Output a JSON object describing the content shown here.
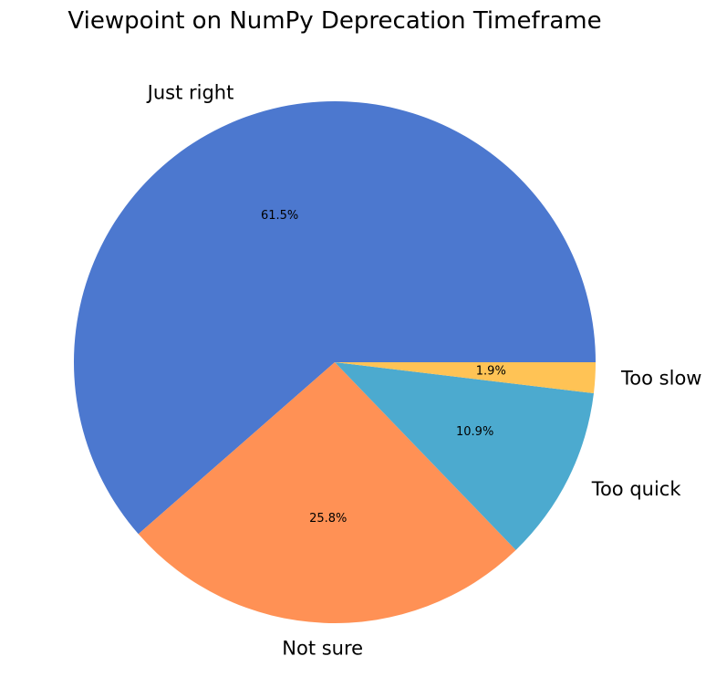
{
  "chart_data": {
    "type": "pie",
    "title": "Viewpoint on NumPy Deprecation Timeframe",
    "start_angle_deg": 0,
    "direction": "counterclockwise",
    "legend": "none",
    "slices": [
      {
        "label": "Just right",
        "value": 61.5,
        "pct_label": "61.5%",
        "color": "#4c78cf"
      },
      {
        "label": "Not sure",
        "value": 25.8,
        "pct_label": "25.8%",
        "color": "#ff9155"
      },
      {
        "label": "Too quick",
        "value": 10.9,
        "pct_label": "10.9%",
        "color": "#4caacf"
      },
      {
        "label": "Too slow",
        "value": 1.9,
        "pct_label": "1.9%",
        "color": "#ffc355"
      }
    ]
  }
}
